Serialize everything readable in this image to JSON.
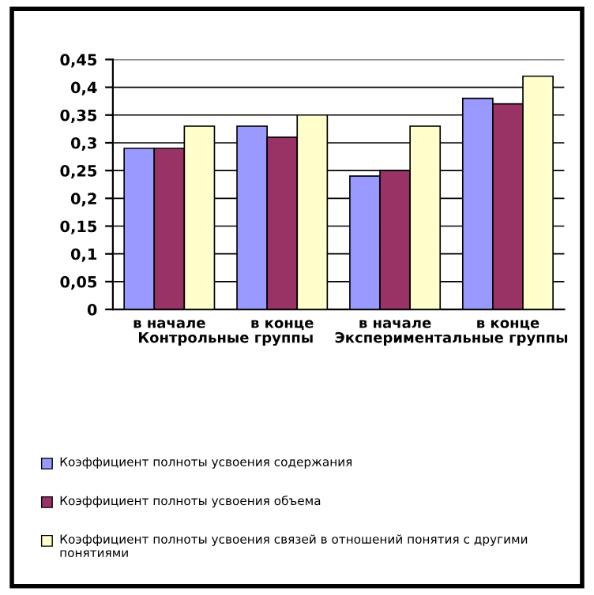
{
  "chart_data": {
    "type": "bar",
    "categories": [
      "в начале",
      "в конце",
      "в начале",
      "в конце"
    ],
    "series": [
      {
        "name": "Коэффициент полноты усвоения содержания",
        "color": "#9999ff",
        "values": [
          0.29,
          0.33,
          0.24,
          0.38
        ]
      },
      {
        "name": "Коэффициент полноты усвоения объема",
        "color": "#993366",
        "values": [
          0.29,
          0.31,
          0.25,
          0.37
        ]
      },
      {
        "name": "Коэффициент полноты усвоения связей в отношений понятия с другими понятиями",
        "color": "#ffffcc",
        "values": [
          0.33,
          0.35,
          0.33,
          0.42
        ]
      }
    ],
    "annotations": [
      "Контрольные группы",
      "Экспериментальные группы"
    ],
    "ylim": [
      0,
      0.45
    ],
    "yticks": [
      {
        "value": 0,
        "label": "0"
      },
      {
        "value": 0.05,
        "label": "0,05"
      },
      {
        "value": 0.1,
        "label": "0,1"
      },
      {
        "value": 0.15,
        "label": "0,15"
      },
      {
        "value": 0.2,
        "label": "0,2"
      },
      {
        "value": 0.25,
        "label": "0,25"
      },
      {
        "value": 0.3,
        "label": "0,3"
      },
      {
        "value": 0.35,
        "label": "0,35"
      },
      {
        "value": 0.4,
        "label": "0,4"
      },
      {
        "value": 0.45,
        "label": "0,45"
      }
    ],
    "grid": "y",
    "legend": "bottom"
  }
}
